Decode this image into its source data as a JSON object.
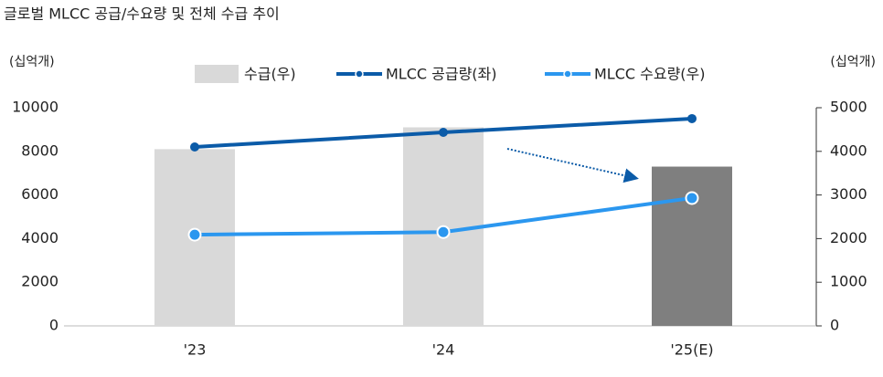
{
  "chart_data": {
    "type": "combo",
    "title": "글로벌 MLCC 공급/수요량 및 전체 수급 추이",
    "y_label": "(십억개)",
    "y2_label": "(십억개)",
    "categories": [
      "'23",
      "'24",
      "'25(E)"
    ],
    "ylim": [
      0,
      10000
    ],
    "yticks": [
      0,
      2000,
      4000,
      6000,
      8000,
      10000
    ],
    "y2lim": [
      0,
      5000
    ],
    "y2ticks": [
      0,
      1000,
      2000,
      3000,
      4000,
      5000
    ],
    "series": [
      {
        "name": "수급(우)",
        "kind": "bar",
        "axis": "y2",
        "color": "#d9d9d9",
        "colors": [
          "#d9d9d9",
          "#d9d9d9",
          "#7f7f7f"
        ],
        "values": [
          4050,
          4550,
          3650
        ]
      },
      {
        "name": "MLCC 공급량(좌)",
        "kind": "line",
        "axis": "y",
        "color": "#0b5ba8",
        "values": [
          8200,
          8870,
          9500
        ]
      },
      {
        "name": "MLCC 수요량(우)",
        "kind": "line",
        "axis": "y2",
        "color": "#2b97ef",
        "values": [
          2090,
          2150,
          2930
        ]
      }
    ]
  }
}
